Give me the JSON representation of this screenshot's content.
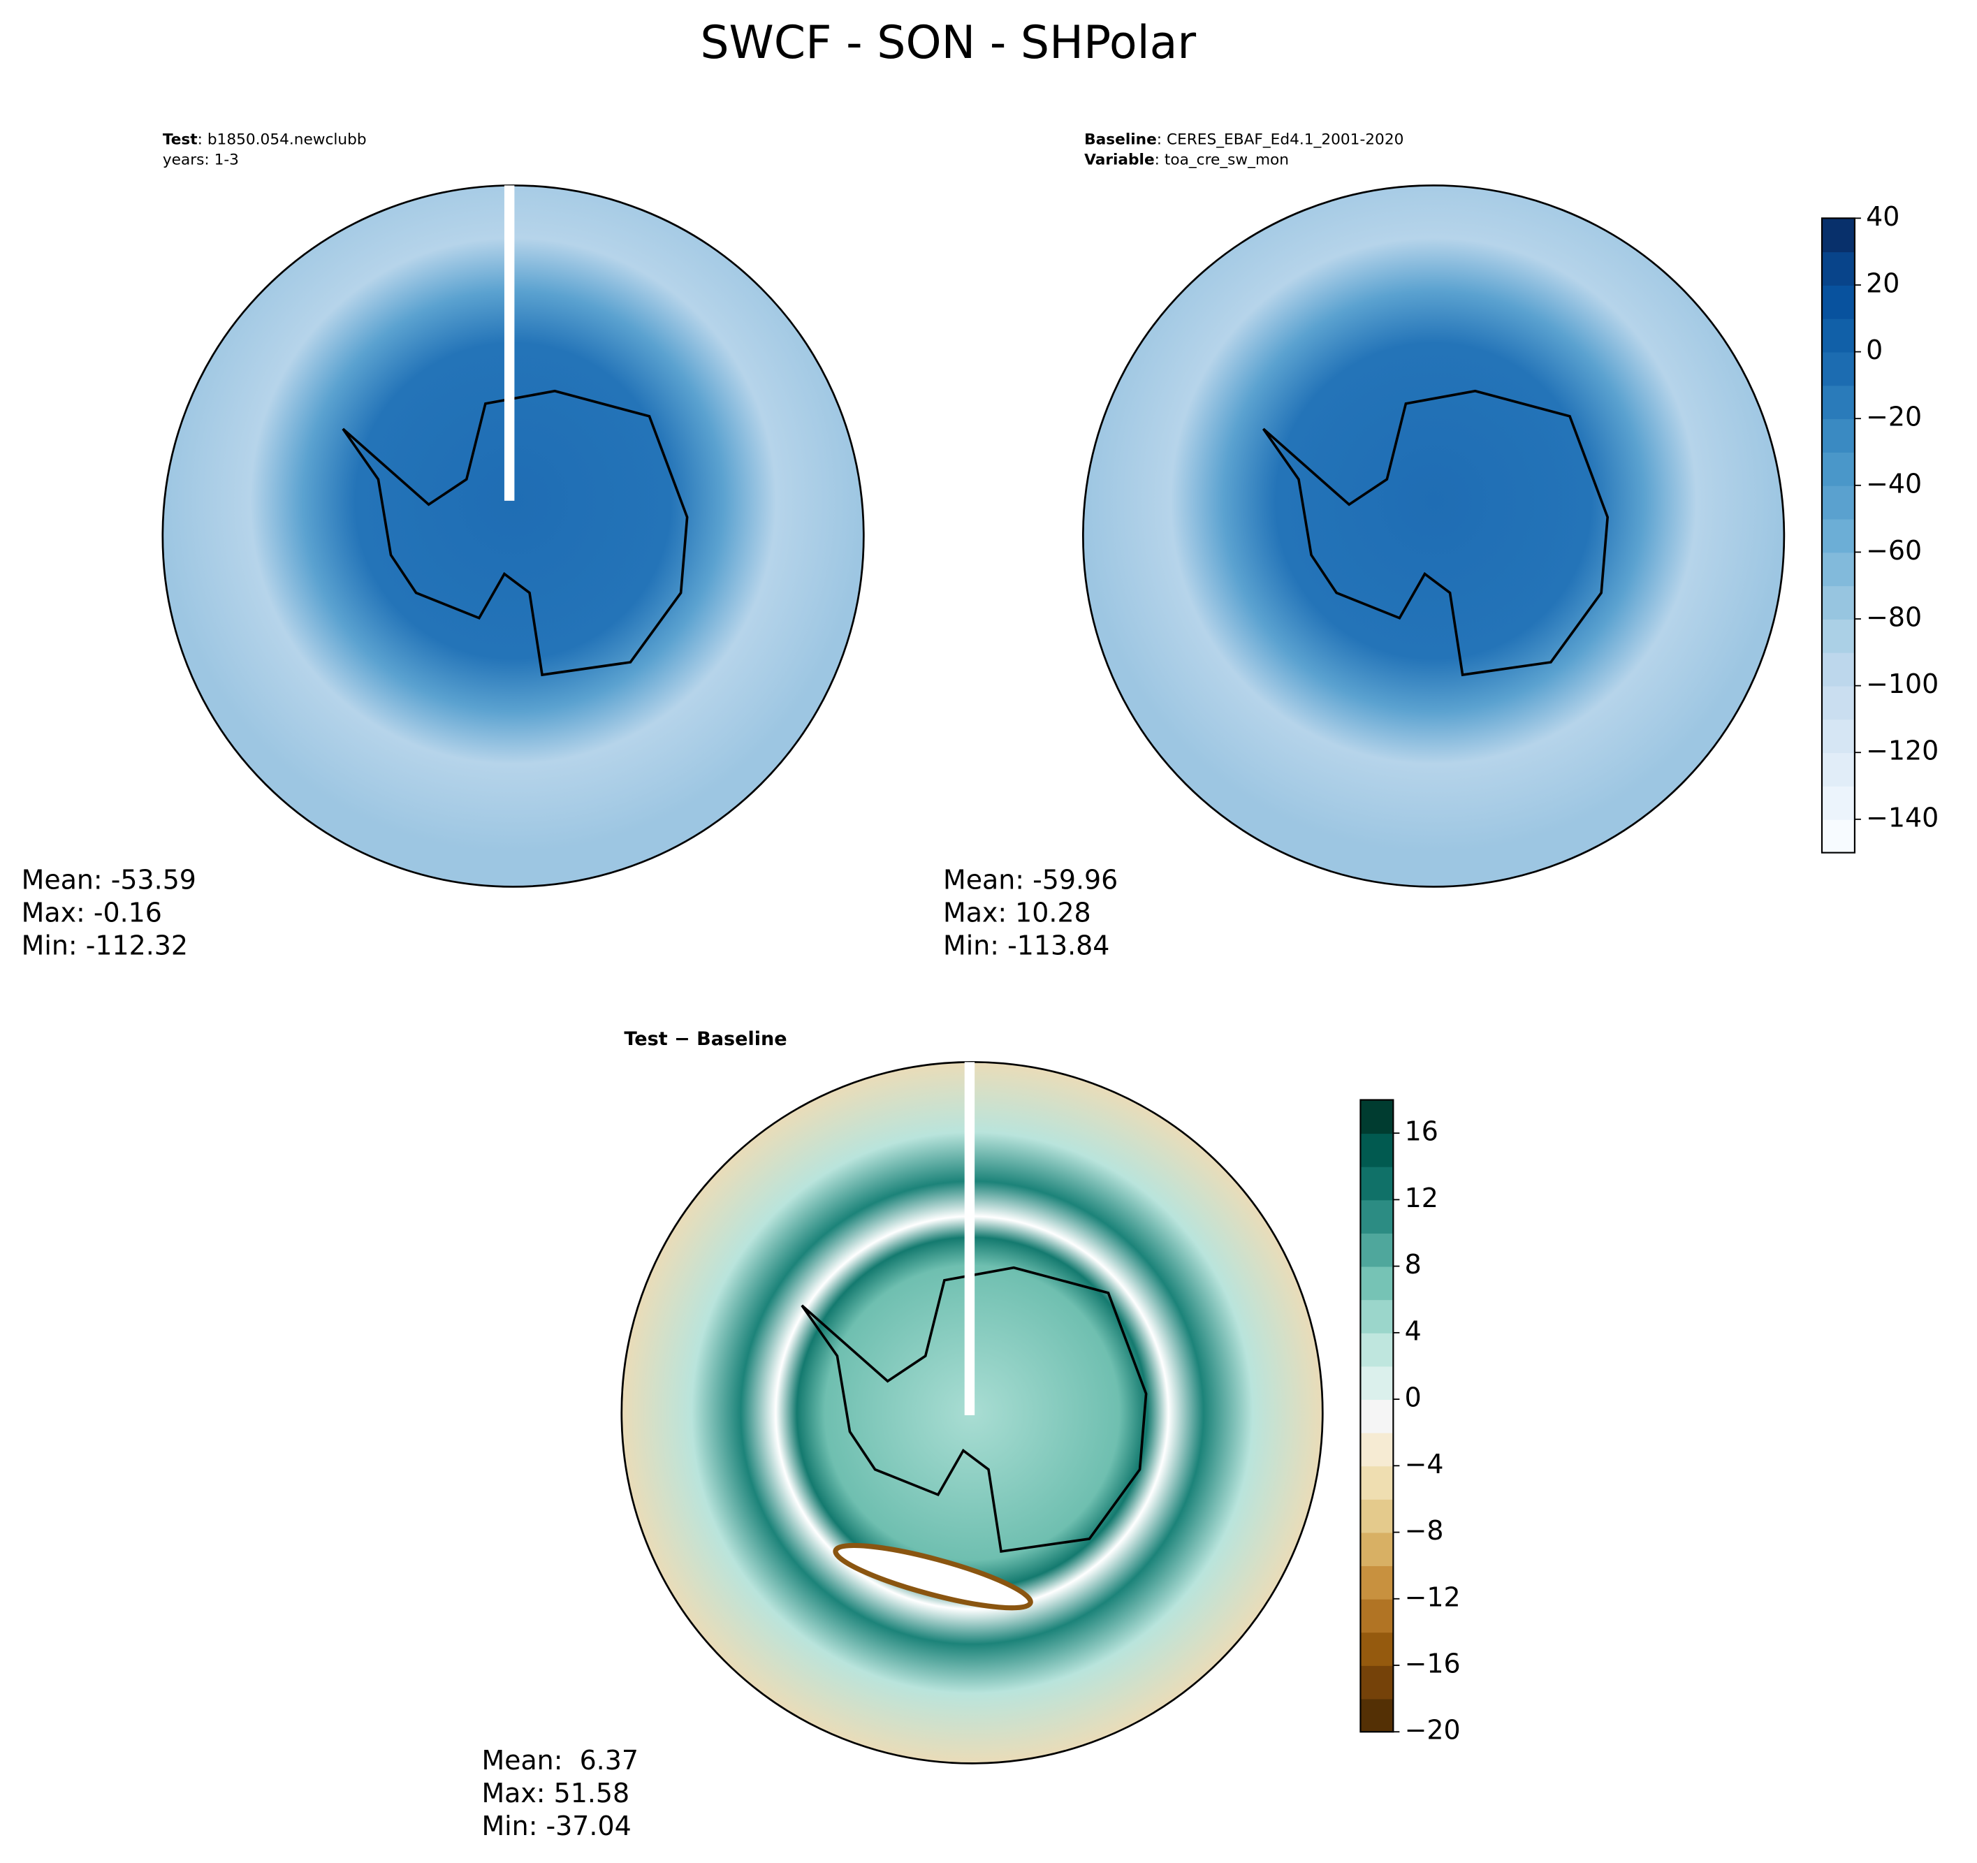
{
  "title": "SWCF - SON - SHPolar",
  "panels": [
    {
      "header": [
        {
          "label": "Test",
          "text": ": b1850.054.newclubb"
        },
        {
          "label": "",
          "text": "years: 1-3"
        }
      ],
      "stats": [
        "Mean: -53.59",
        "Max: -0.16",
        "Min: -112.32"
      ]
    },
    {
      "header": [
        {
          "label": "Baseline",
          "text": ": CERES_EBAF_Ed4.1_2001-2020"
        },
        {
          "label": "Variable",
          "text": ": toa_cre_sw_mon"
        }
      ],
      "stats": [
        "Mean: -59.96",
        "Max: 10.28",
        "Min: -113.84"
      ]
    },
    {
      "header": [
        {
          "label": "Test − Baseline",
          "text": ""
        }
      ],
      "stats": [
        "Mean:  6.37",
        "Max: 51.58",
        "Min: -37.04"
      ]
    }
  ],
  "colorbars": [
    {
      "lim": [
        -150,
        40
      ],
      "ticks": [
        {
          "value": 40,
          "label": "40"
        },
        {
          "value": 20,
          "label": "20"
        },
        {
          "value": 0,
          "label": "0"
        },
        {
          "value": -20,
          "label": "−20"
        },
        {
          "value": -40,
          "label": "−40"
        },
        {
          "value": -60,
          "label": "−60"
        },
        {
          "value": -80,
          "label": "−80"
        },
        {
          "value": -100,
          "label": "−100"
        },
        {
          "value": -120,
          "label": "−120"
        },
        {
          "value": -140,
          "label": "−140"
        }
      ],
      "colors": [
        "#f7fbff",
        "#ecf4fc",
        "#e1edf8",
        "#d6e6f4",
        "#cadef0",
        "#bdd7ec",
        "#abd0e6",
        "#97c5e0",
        "#82badb",
        "#6caed6",
        "#5aa1cf",
        "#4a97c9",
        "#3a8ac2",
        "#2a7bba",
        "#1c6cb1",
        "#1160a8",
        "#08529e",
        "#08448a",
        "#08306b"
      ]
    },
    {
      "lim": [
        -20,
        18
      ],
      "ticks": [
        {
          "value": 16,
          "label": "16"
        },
        {
          "value": 12,
          "label": "12"
        },
        {
          "value": 8,
          "label": "8"
        },
        {
          "value": 4,
          "label": "4"
        },
        {
          "value": 0,
          "label": "0"
        },
        {
          "value": -4,
          "label": "−4"
        },
        {
          "value": -8,
          "label": "−8"
        },
        {
          "value": -12,
          "label": "−12"
        },
        {
          "value": -16,
          "label": "−16"
        },
        {
          "value": -20,
          "label": "−20"
        }
      ],
      "colors": [
        "#543005",
        "#754209",
        "#955a0e",
        "#b17424",
        "#c8913f",
        "#d8b064",
        "#e4ca8c",
        "#efdeb1",
        "#f6ebd3",
        "#f5f5f5",
        "#dbf0ec",
        "#bfe6de",
        "#9bd6cb",
        "#76c3b5",
        "#4fa79c",
        "#2c8c83",
        "#107168",
        "#015a50",
        "#003c30"
      ]
    }
  ]
}
